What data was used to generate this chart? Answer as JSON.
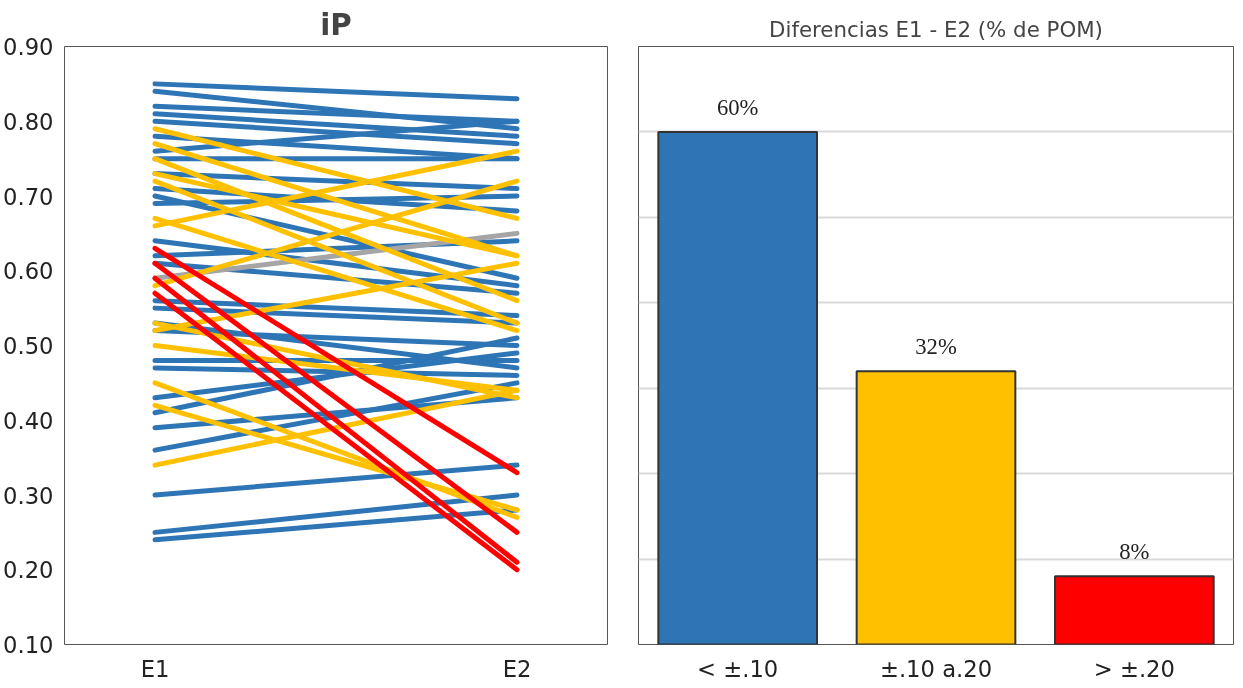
{
  "chart_data": [
    {
      "type": "line",
      "title": "iP",
      "categories": [
        "E1",
        "E2"
      ],
      "ylim": [
        0.1,
        0.9
      ],
      "yticks": [
        {
          "value": 0.1,
          "label": "0.10"
        },
        {
          "value": 0.2,
          "label": "0.20"
        },
        {
          "value": 0.3,
          "label": "0.30"
        },
        {
          "value": 0.4,
          "label": "0.40"
        },
        {
          "value": 0.5,
          "label": "0.50"
        },
        {
          "value": 0.6,
          "label": "0.60"
        },
        {
          "value": 0.7,
          "label": "0.70"
        },
        {
          "value": 0.8,
          "label": "0.80"
        },
        {
          "value": 0.9,
          "label": "0.90"
        }
      ],
      "grid": false,
      "series": [
        {
          "color": "#2e75b6",
          "values": [
            0.85,
            0.83
          ]
        },
        {
          "color": "#2e75b6",
          "values": [
            0.84,
            0.79
          ]
        },
        {
          "color": "#2e75b6",
          "values": [
            0.82,
            0.8
          ]
        },
        {
          "color": "#2e75b6",
          "values": [
            0.81,
            0.78
          ]
        },
        {
          "color": "#2e75b6",
          "values": [
            0.8,
            0.77
          ]
        },
        {
          "color": "#2e75b6",
          "values": [
            0.78,
            0.75
          ]
        },
        {
          "color": "#2e75b6",
          "values": [
            0.76,
            0.8
          ]
        },
        {
          "color": "#2e75b6",
          "values": [
            0.75,
            0.75
          ]
        },
        {
          "color": "#2e75b6",
          "values": [
            0.73,
            0.71
          ]
        },
        {
          "color": "#2e75b6",
          "values": [
            0.71,
            0.68
          ]
        },
        {
          "color": "#2e75b6",
          "values": [
            0.7,
            0.59
          ]
        },
        {
          "color": "#2e75b6",
          "values": [
            0.69,
            0.7
          ]
        },
        {
          "color": "#2e75b6",
          "values": [
            0.64,
            0.58
          ]
        },
        {
          "color": "#2e75b6",
          "values": [
            0.62,
            0.64
          ]
        },
        {
          "color": "#2e75b6",
          "values": [
            0.61,
            0.57
          ]
        },
        {
          "color": "#2e75b6",
          "values": [
            0.56,
            0.54
          ]
        },
        {
          "color": "#2e75b6",
          "values": [
            0.55,
            0.53
          ]
        },
        {
          "color": "#2e75b6",
          "values": [
            0.53,
            0.47
          ]
        },
        {
          "color": "#2e75b6",
          "values": [
            0.52,
            0.5
          ]
        },
        {
          "color": "#2e75b6",
          "values": [
            0.48,
            0.48
          ]
        },
        {
          "color": "#2e75b6",
          "values": [
            0.47,
            0.46
          ]
        },
        {
          "color": "#2e75b6",
          "values": [
            0.43,
            0.49
          ]
        },
        {
          "color": "#2e75b6",
          "values": [
            0.41,
            0.51
          ]
        },
        {
          "color": "#2e75b6",
          "values": [
            0.39,
            0.43
          ]
        },
        {
          "color": "#2e75b6",
          "values": [
            0.36,
            0.45
          ]
        },
        {
          "color": "#2e75b6",
          "values": [
            0.3,
            0.34
          ]
        },
        {
          "color": "#2e75b6",
          "values": [
            0.25,
            0.3
          ]
        },
        {
          "color": "#2e75b6",
          "values": [
            0.24,
            0.28
          ]
        },
        {
          "color": "#a5a5a5",
          "values": [
            0.59,
            0.65
          ]
        },
        {
          "color": "#ffc000",
          "values": [
            0.79,
            0.67
          ]
        },
        {
          "color": "#ffc000",
          "values": [
            0.77,
            0.62
          ]
        },
        {
          "color": "#ffc000",
          "values": [
            0.75,
            0.56
          ]
        },
        {
          "color": "#ffc000",
          "values": [
            0.72,
            0.53
          ]
        },
        {
          "color": "#ffc000",
          "values": [
            0.73,
            0.62
          ]
        },
        {
          "color": "#ffc000",
          "values": [
            0.67,
            0.52
          ]
        },
        {
          "color": "#ffc000",
          "values": [
            0.66,
            0.76
          ]
        },
        {
          "color": "#ffc000",
          "values": [
            0.58,
            0.72
          ]
        },
        {
          "color": "#ffc000",
          "values": [
            0.52,
            0.61
          ]
        },
        {
          "color": "#ffc000",
          "values": [
            0.5,
            0.44
          ]
        },
        {
          "color": "#ffc000",
          "values": [
            0.53,
            0.43
          ]
        },
        {
          "color": "#ffc000",
          "values": [
            0.45,
            0.27
          ]
        },
        {
          "color": "#ffc000",
          "values": [
            0.42,
            0.28
          ]
        },
        {
          "color": "#ffc000",
          "values": [
            0.34,
            0.44
          ]
        },
        {
          "color": "#ff0000",
          "values": [
            0.63,
            0.33
          ]
        },
        {
          "color": "#ff0000",
          "values": [
            0.61,
            0.25
          ]
        },
        {
          "color": "#ff0000",
          "values": [
            0.59,
            0.21
          ]
        },
        {
          "color": "#ff0000",
          "values": [
            0.57,
            0.2
          ]
        }
      ]
    },
    {
      "type": "bar",
      "title": "Diferencias E1 - E2 (% de POM)",
      "categories": [
        "< ±.10",
        "±.10 a.20",
        "> ±.20"
      ],
      "values": [
        60,
        32,
        8
      ],
      "colors": [
        "#2e75b6",
        "#ffc000",
        "#ff0000"
      ],
      "value_labels": [
        "60%",
        "32%",
        "8%"
      ],
      "ylim": [
        0,
        70
      ],
      "yticks": [
        0,
        10,
        20,
        30,
        40,
        50,
        60,
        70
      ],
      "grid": "y",
      "tick_labels": "x"
    }
  ]
}
